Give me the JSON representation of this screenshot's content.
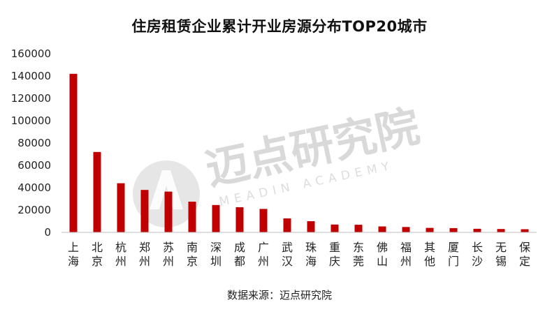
{
  "title": "住房租赁企业累计开业房源分布TOP20城市",
  "source": "数据来源：迈点研究院",
  "watermark": {
    "text": "迈点研究院",
    "subtext": "MEADIN ACADEMY"
  },
  "colors": {
    "bar": "#c00000",
    "axis": "#bfbfbf",
    "watermark": "#d9d9d9"
  },
  "chart_data": {
    "type": "bar",
    "title": "住房租赁企业累计开业房源分布TOP20城市",
    "xlabel": "",
    "ylabel": "",
    "ylim": [
      0,
      160000
    ],
    "yticks": [
      0,
      20000,
      40000,
      60000,
      80000,
      100000,
      120000,
      140000,
      160000
    ],
    "ytick_labels": [
      "0",
      "20000",
      "40000",
      "60000",
      "80000",
      "100000",
      "120000",
      "140000",
      "160000"
    ],
    "grid": false,
    "categories": [
      "上海",
      "北京",
      "杭州",
      "郑州",
      "苏州",
      "南京",
      "深圳",
      "成都",
      "广州",
      "武汉",
      "珠海",
      "重庆",
      "东莞",
      "佛山",
      "福州",
      "其他",
      "厦门",
      "长沙",
      "无锡",
      "保定"
    ],
    "values": [
      142000,
      72000,
      44000,
      38000,
      36500,
      27500,
      24500,
      22500,
      21000,
      12500,
      10000,
      7000,
      6800,
      5300,
      4800,
      4000,
      3800,
      3200,
      3000,
      2800
    ]
  }
}
